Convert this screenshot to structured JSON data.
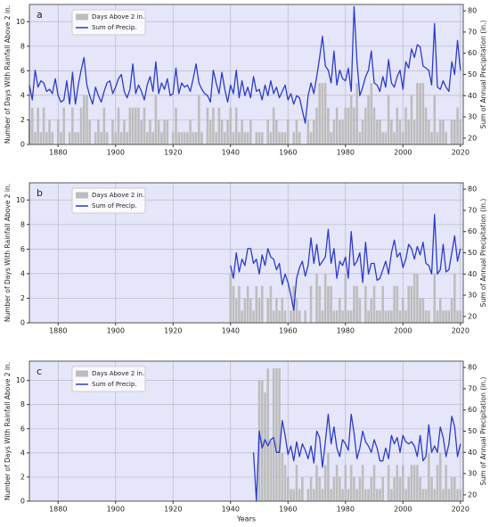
{
  "chart_data": [
    {
      "type": "combo",
      "panel_label": "a",
      "ylabel": "Number of Days With Rainfall Above 2 in.",
      "y2label": "Sum of Annual Precipitation (in.)",
      "x": [
        1870,
        1871,
        1872,
        1873,
        1874,
        1875,
        1876,
        1877,
        1878,
        1879,
        1880,
        1881,
        1882,
        1883,
        1884,
        1885,
        1886,
        1887,
        1888,
        1889,
        1890,
        1891,
        1892,
        1893,
        1894,
        1895,
        1896,
        1897,
        1898,
        1899,
        1900,
        1901,
        1902,
        1903,
        1904,
        1905,
        1906,
        1907,
        1908,
        1909,
        1910,
        1911,
        1912,
        1913,
        1914,
        1915,
        1916,
        1917,
        1918,
        1919,
        1920,
        1921,
        1922,
        1923,
        1924,
        1925,
        1926,
        1927,
        1928,
        1929,
        1930,
        1931,
        1932,
        1933,
        1934,
        1935,
        1936,
        1937,
        1938,
        1939,
        1940,
        1941,
        1942,
        1943,
        1944,
        1945,
        1946,
        1947,
        1948,
        1949,
        1950,
        1951,
        1952,
        1953,
        1954,
        1955,
        1956,
        1957,
        1958,
        1959,
        1960,
        1961,
        1962,
        1963,
        1964,
        1965,
        1966,
        1967,
        1968,
        1969,
        1970,
        1971,
        1972,
        1973,
        1974,
        1975,
        1976,
        1977,
        1978,
        1979,
        1980,
        1981,
        1982,
        1983,
        1984,
        1985,
        1986,
        1987,
        1988,
        1989,
        1990,
        1991,
        1992,
        1993,
        1994,
        1995,
        1996,
        1997,
        1998,
        1999,
        2000,
        2001,
        2002,
        2003,
        2004,
        2005,
        2006,
        2007,
        2008,
        2009,
        2010,
        2011,
        2012,
        2013,
        2014,
        2015,
        2016,
        2017,
        2018,
        2019,
        2020
      ],
      "series": [
        {
          "name": "Days Above 2 in.",
          "type": "bar",
          "color": "#bdbdbd",
          "values": [
            2,
            3,
            1,
            3,
            1,
            3,
            1,
            2,
            1,
            0,
            2,
            1,
            3,
            0,
            1,
            3,
            1,
            1,
            3,
            4,
            4,
            2,
            0,
            1,
            2,
            1,
            3,
            1,
            0,
            2,
            1,
            3,
            1,
            2,
            1,
            3,
            3,
            3,
            3,
            2,
            3,
            1,
            2,
            1,
            4,
            2,
            1,
            2,
            2,
            0,
            1,
            3,
            1,
            1,
            1,
            1,
            2,
            1,
            1,
            4,
            1,
            0,
            3,
            2,
            3,
            1,
            3,
            2,
            1,
            2,
            3,
            1,
            3,
            1,
            2,
            1,
            1,
            2,
            0,
            1,
            1,
            1,
            0,
            2,
            1,
            3,
            2,
            1,
            1,
            1,
            2,
            0,
            1,
            2,
            1,
            0,
            0,
            2,
            1,
            2,
            3,
            5,
            5,
            5,
            3,
            1,
            2,
            3,
            2,
            2,
            3,
            3,
            4,
            3,
            5,
            1,
            2,
            3,
            4,
            5,
            3,
            2,
            2,
            1,
            1,
            4,
            2,
            1,
            3,
            2,
            1,
            3,
            2,
            4,
            2,
            5,
            5,
            5,
            3,
            2,
            1,
            4,
            1,
            2,
            2,
            1,
            0,
            2,
            2,
            3,
            2
          ]
        },
        {
          "name": "Sum of Precip.",
          "type": "line",
          "axis": "y2",
          "color": "#2b3cc8",
          "values": [
            45,
            38,
            52,
            44,
            47,
            46,
            42,
            43,
            41,
            48,
            40,
            37,
            38,
            47,
            36,
            51,
            36,
            45,
            52,
            58,
            45,
            40,
            36,
            44,
            40,
            37,
            42,
            46,
            47,
            41,
            44,
            48,
            50,
            42,
            39,
            43,
            55,
            41,
            45,
            42,
            38,
            45,
            49,
            42,
            56,
            41,
            46,
            43,
            48,
            40,
            41,
            53,
            41,
            46,
            44,
            45,
            42,
            48,
            55,
            46,
            43,
            41,
            40,
            37,
            52,
            46,
            41,
            51,
            43,
            37,
            45,
            41,
            52,
            39,
            47,
            40,
            44,
            39,
            49,
            42,
            43,
            38,
            45,
            40,
            47,
            41,
            44,
            39,
            42,
            45,
            38,
            41,
            36,
            40,
            39,
            33,
            27,
            40,
            46,
            41,
            49,
            58,
            68,
            54,
            52,
            46,
            61,
            45,
            52,
            48,
            47,
            53,
            42,
            82,
            56,
            40,
            44,
            49,
            52,
            61,
            46,
            45,
            42,
            49,
            44,
            57,
            46,
            44,
            49,
            52,
            43,
            56,
            53,
            62,
            58,
            64,
            63,
            54,
            53,
            52,
            45,
            74,
            44,
            43,
            47,
            44,
            42,
            56,
            50,
            66,
            52
          ]
        }
      ],
      "xlim": [
        1870,
        2021
      ],
      "xticks": [
        1880,
        1900,
        1920,
        1940,
        1960,
        1980,
        2000,
        2020
      ],
      "ylim": [
        0,
        11.4
      ],
      "yticks": [
        0,
        2,
        4,
        6,
        8,
        10
      ],
      "y2lim": [
        17,
        83
      ],
      "y2ticks": [
        20,
        30,
        40,
        50,
        60,
        70,
        80
      ],
      "grid": true,
      "legend": "upper left"
    },
    {
      "type": "combo",
      "panel_label": "b",
      "ylabel": "Number of Days With Rainfall Above 2 in.",
      "y2label": "Sum of Annual Precipitation (in.)",
      "x": [
        1940,
        1941,
        1942,
        1943,
        1944,
        1945,
        1946,
        1947,
        1948,
        1949,
        1950,
        1951,
        1952,
        1953,
        1954,
        1955,
        1956,
        1957,
        1958,
        1959,
        1960,
        1961,
        1962,
        1963,
        1964,
        1965,
        1966,
        1967,
        1968,
        1969,
        1970,
        1971,
        1972,
        1973,
        1974,
        1975,
        1976,
        1977,
        1978,
        1979,
        1980,
        1981,
        1982,
        1983,
        1984,
        1985,
        1986,
        1987,
        1988,
        1989,
        1990,
        1991,
        1992,
        1993,
        1994,
        1995,
        1996,
        1997,
        1998,
        1999,
        2000,
        2001,
        2002,
        2003,
        2004,
        2005,
        2006,
        2007,
        2008,
        2009,
        2010,
        2011,
        2012,
        2013,
        2014,
        2015,
        2016,
        2017,
        2018,
        2019,
        2020
      ],
      "series": [
        {
          "name": "Days Above 2 in.",
          "type": "bar",
          "color": "#bdbdbd",
          "values": [
            4,
            3,
            2,
            3,
            1,
            2,
            3,
            2,
            1,
            3,
            2,
            3,
            0,
            2,
            3,
            1,
            2,
            1,
            2,
            1,
            0,
            1,
            3,
            2,
            1,
            0,
            1,
            0,
            3,
            0,
            4,
            3,
            1,
            4,
            3,
            3,
            1,
            1,
            2,
            1,
            4,
            1,
            1,
            3,
            3,
            2,
            0,
            3,
            1,
            2,
            3,
            1,
            1,
            3,
            1,
            1,
            1,
            3,
            3,
            1,
            2,
            1,
            3,
            3,
            4,
            4,
            2,
            2,
            1,
            1,
            0,
            4,
            1,
            2,
            1,
            1,
            1,
            2,
            4,
            1,
            1
          ]
        },
        {
          "name": "Sum of Precip.",
          "type": "line",
          "axis": "y2",
          "color": "#2b3cc8",
          "values": [
            44,
            38,
            50,
            41,
            47,
            44,
            52,
            52,
            45,
            47,
            40,
            49,
            44,
            52,
            48,
            47,
            42,
            45,
            35,
            40,
            36,
            30,
            23,
            38,
            43,
            46,
            39,
            44,
            57,
            45,
            54,
            44,
            46,
            48,
            61,
            45,
            52,
            38,
            46,
            44,
            48,
            38,
            60,
            44,
            46,
            50,
            36,
            55,
            40,
            45,
            45,
            37,
            38,
            42,
            46,
            40,
            50,
            56,
            48,
            50,
            43,
            47,
            54,
            52,
            47,
            53,
            49,
            55,
            45,
            44,
            40,
            68,
            40,
            42,
            54,
            41,
            42,
            50,
            58,
            46,
            52
          ]
        }
      ],
      "xlim": [
        1870,
        2021
      ],
      "xticks": [
        1880,
        1900,
        1920,
        1940,
        1960,
        1980,
        2000,
        2020
      ],
      "ylim": [
        0,
        11.4
      ],
      "yticks": [
        0,
        2,
        4,
        6,
        8,
        10
      ],
      "y2lim": [
        17,
        83
      ],
      "y2ticks": [
        20,
        30,
        40,
        50,
        60,
        70,
        80
      ],
      "grid": true,
      "legend": "upper left"
    },
    {
      "type": "combo",
      "panel_label": "c",
      "ylabel": "Number of Days With Rainfall Above 2 in.",
      "y2label": "Sum of Annual Precipitation (in.)",
      "xlabel": "Years",
      "x": [
        1948,
        1949,
        1950,
        1951,
        1952,
        1953,
        1954,
        1955,
        1956,
        1957,
        1958,
        1959,
        1960,
        1961,
        1962,
        1963,
        1964,
        1965,
        1966,
        1967,
        1968,
        1969,
        1970,
        1971,
        1972,
        1973,
        1974,
        1975,
        1976,
        1977,
        1978,
        1979,
        1980,
        1981,
        1982,
        1983,
        1984,
        1985,
        1986,
        1987,
        1988,
        1989,
        1990,
        1991,
        1992,
        1993,
        1994,
        1995,
        1996,
        1997,
        1998,
        1999,
        2000,
        2001,
        2002,
        2003,
        2004,
        2005,
        2006,
        2007,
        2008,
        2009,
        2010,
        2011,
        2012,
        2013,
        2014,
        2015,
        2016,
        2017,
        2018,
        2019,
        2020
      ],
      "series": [
        {
          "name": "Days Above 2 in.",
          "type": "bar",
          "color": "#bdbdbd",
          "values": [
            0,
            0,
            10,
            10,
            9,
            11,
            5,
            11,
            11,
            11,
            4,
            3,
            2,
            1,
            1,
            3,
            1,
            2,
            0,
            1,
            2,
            1,
            3,
            2,
            1,
            3,
            4,
            1,
            2,
            3,
            2,
            1,
            3,
            1,
            3,
            2,
            1,
            2,
            3,
            1,
            1,
            2,
            3,
            1,
            1,
            2,
            0,
            3,
            1,
            2,
            3,
            2,
            3,
            1,
            2,
            3,
            3,
            3,
            2,
            1,
            1,
            4,
            2,
            1,
            3,
            4,
            1,
            3,
            1,
            2,
            2,
            1,
            1
          ]
        },
        {
          "name": "Sum of Precip.",
          "type": "line",
          "axis": "y2",
          "color": "#2b3cc8",
          "values": [
            40,
            17,
            50,
            42,
            46,
            43,
            46,
            47,
            40,
            40,
            55,
            48,
            39,
            43,
            36,
            45,
            38,
            44,
            41,
            37,
            43,
            35,
            50,
            47,
            33,
            45,
            58,
            44,
            52,
            42,
            38,
            46,
            44,
            41,
            58,
            49,
            37,
            42,
            50,
            45,
            43,
            40,
            46,
            42,
            36,
            36,
            42,
            37,
            48,
            44,
            47,
            40,
            48,
            45,
            44,
            45,
            43,
            38,
            48,
            36,
            38,
            53,
            40,
            43,
            40,
            52,
            47,
            38,
            44,
            57,
            52,
            38,
            44
          ]
        }
      ],
      "xlim": [
        1870,
        2021
      ],
      "xticks": [
        1880,
        1900,
        1920,
        1940,
        1960,
        1980,
        2000,
        2020
      ],
      "ylim": [
        0,
        11.6
      ],
      "yticks": [
        0,
        2,
        4,
        6,
        8,
        10
      ],
      "y2lim": [
        17,
        83
      ],
      "y2ticks": [
        20,
        30,
        40,
        50,
        60,
        70,
        80
      ],
      "grid": true,
      "legend": "upper left"
    }
  ]
}
